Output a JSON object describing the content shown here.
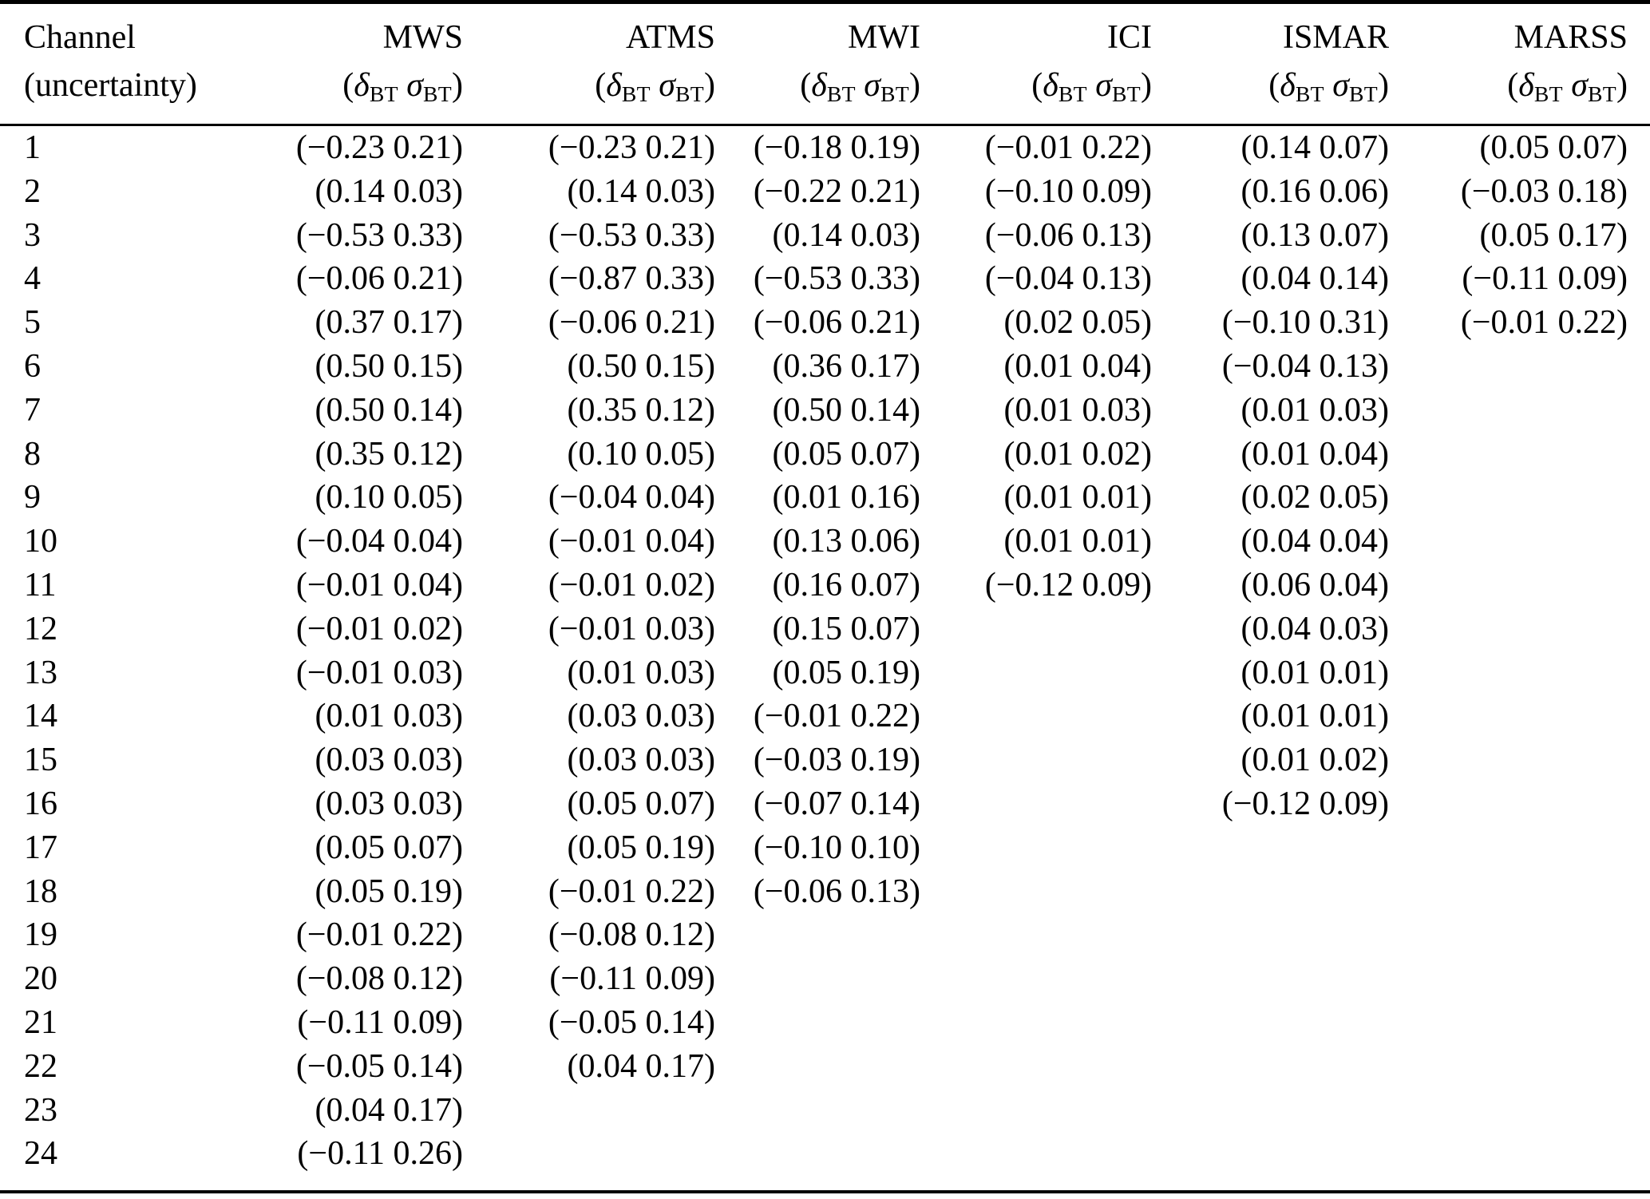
{
  "table": {
    "channel_header_line1": "Channel",
    "channel_header_line2": "(uncertainty)",
    "instrument_columns": [
      "MWS",
      "ATMS",
      "MWI",
      "ICI",
      "ISMAR",
      "MARSS"
    ],
    "subheader": {
      "open": "(",
      "delta": "δ",
      "delta_sub": "BT",
      "sigma": "σ",
      "sigma_sub": "BT",
      "close": ")"
    },
    "minus_sign": "−",
    "rows": [
      {
        "channel": "1",
        "values": [
          [
            -0.23,
            0.21
          ],
          [
            -0.23,
            0.21
          ],
          [
            -0.18,
            0.19
          ],
          [
            -0.01,
            0.22
          ],
          [
            0.14,
            0.07
          ],
          [
            0.05,
            0.07
          ]
        ]
      },
      {
        "channel": "2",
        "values": [
          [
            0.14,
            0.03
          ],
          [
            0.14,
            0.03
          ],
          [
            -0.22,
            0.21
          ],
          [
            -0.1,
            0.09
          ],
          [
            0.16,
            0.06
          ],
          [
            -0.03,
            0.18
          ]
        ]
      },
      {
        "channel": "3",
        "values": [
          [
            -0.53,
            0.33
          ],
          [
            -0.53,
            0.33
          ],
          [
            0.14,
            0.03
          ],
          [
            -0.06,
            0.13
          ],
          [
            0.13,
            0.07
          ],
          [
            0.05,
            0.17
          ]
        ]
      },
      {
        "channel": "4",
        "values": [
          [
            -0.06,
            0.21
          ],
          [
            -0.87,
            0.33
          ],
          [
            -0.53,
            0.33
          ],
          [
            -0.04,
            0.13
          ],
          [
            0.04,
            0.14
          ],
          [
            -0.11,
            0.09
          ]
        ]
      },
      {
        "channel": "5",
        "values": [
          [
            0.37,
            0.17
          ],
          [
            -0.06,
            0.21
          ],
          [
            -0.06,
            0.21
          ],
          [
            0.02,
            0.05
          ],
          [
            -0.1,
            0.31
          ],
          [
            -0.01,
            0.22
          ]
        ]
      },
      {
        "channel": "6",
        "values": [
          [
            0.5,
            0.15
          ],
          [
            0.5,
            0.15
          ],
          [
            0.36,
            0.17
          ],
          [
            0.01,
            0.04
          ],
          [
            -0.04,
            0.13
          ],
          null
        ]
      },
      {
        "channel": "7",
        "values": [
          [
            0.5,
            0.14
          ],
          [
            0.35,
            0.12
          ],
          [
            0.5,
            0.14
          ],
          [
            0.01,
            0.03
          ],
          [
            0.01,
            0.03
          ],
          null
        ]
      },
      {
        "channel": "8",
        "values": [
          [
            0.35,
            0.12
          ],
          [
            0.1,
            0.05
          ],
          [
            0.05,
            0.07
          ],
          [
            0.01,
            0.02
          ],
          [
            0.01,
            0.04
          ],
          null
        ]
      },
      {
        "channel": "9",
        "values": [
          [
            0.1,
            0.05
          ],
          [
            -0.04,
            0.04
          ],
          [
            0.01,
            0.16
          ],
          [
            0.01,
            0.01
          ],
          [
            0.02,
            0.05
          ],
          null
        ]
      },
      {
        "channel": "10",
        "values": [
          [
            -0.04,
            0.04
          ],
          [
            -0.01,
            0.04
          ],
          [
            0.13,
            0.06
          ],
          [
            0.01,
            0.01
          ],
          [
            0.04,
            0.04
          ],
          null
        ]
      },
      {
        "channel": "11",
        "values": [
          [
            -0.01,
            0.04
          ],
          [
            -0.01,
            0.02
          ],
          [
            0.16,
            0.07
          ],
          [
            -0.12,
            0.09
          ],
          [
            0.06,
            0.04
          ],
          null
        ]
      },
      {
        "channel": "12",
        "values": [
          [
            -0.01,
            0.02
          ],
          [
            -0.01,
            0.03
          ],
          [
            0.15,
            0.07
          ],
          null,
          [
            0.04,
            0.03
          ],
          null
        ]
      },
      {
        "channel": "13",
        "values": [
          [
            -0.01,
            0.03
          ],
          [
            0.01,
            0.03
          ],
          [
            0.05,
            0.19
          ],
          null,
          [
            0.01,
            0.01
          ],
          null
        ]
      },
      {
        "channel": "14",
        "values": [
          [
            0.01,
            0.03
          ],
          [
            0.03,
            0.03
          ],
          [
            -0.01,
            0.22
          ],
          null,
          [
            0.01,
            0.01
          ],
          null
        ]
      },
      {
        "channel": "15",
        "values": [
          [
            0.03,
            0.03
          ],
          [
            0.03,
            0.03
          ],
          [
            -0.03,
            0.19
          ],
          null,
          [
            0.01,
            0.02
          ],
          null
        ]
      },
      {
        "channel": "16",
        "values": [
          [
            0.03,
            0.03
          ],
          [
            0.05,
            0.07
          ],
          [
            -0.07,
            0.14
          ],
          null,
          [
            -0.12,
            0.09
          ],
          null
        ]
      },
      {
        "channel": "17",
        "values": [
          [
            0.05,
            0.07
          ],
          [
            0.05,
            0.19
          ],
          [
            -0.1,
            0.1
          ],
          null,
          null,
          null
        ]
      },
      {
        "channel": "18",
        "values": [
          [
            0.05,
            0.19
          ],
          [
            -0.01,
            0.22
          ],
          [
            -0.06,
            0.13
          ],
          null,
          null,
          null
        ]
      },
      {
        "channel": "19",
        "values": [
          [
            -0.01,
            0.22
          ],
          [
            -0.08,
            0.12
          ],
          null,
          null,
          null,
          null
        ]
      },
      {
        "channel": "20",
        "values": [
          [
            -0.08,
            0.12
          ],
          [
            -0.11,
            0.09
          ],
          null,
          null,
          null,
          null
        ]
      },
      {
        "channel": "21",
        "values": [
          [
            -0.11,
            0.09
          ],
          [
            -0.05,
            0.14
          ],
          null,
          null,
          null,
          null
        ]
      },
      {
        "channel": "22",
        "values": [
          [
            -0.05,
            0.14
          ],
          [
            0.04,
            0.17
          ],
          null,
          null,
          null,
          null
        ]
      },
      {
        "channel": "23",
        "values": [
          [
            0.04,
            0.17
          ],
          null,
          null,
          null,
          null,
          null
        ]
      },
      {
        "channel": "24",
        "values": [
          [
            -0.11,
            0.26
          ],
          null,
          null,
          null,
          null,
          null
        ]
      }
    ]
  }
}
